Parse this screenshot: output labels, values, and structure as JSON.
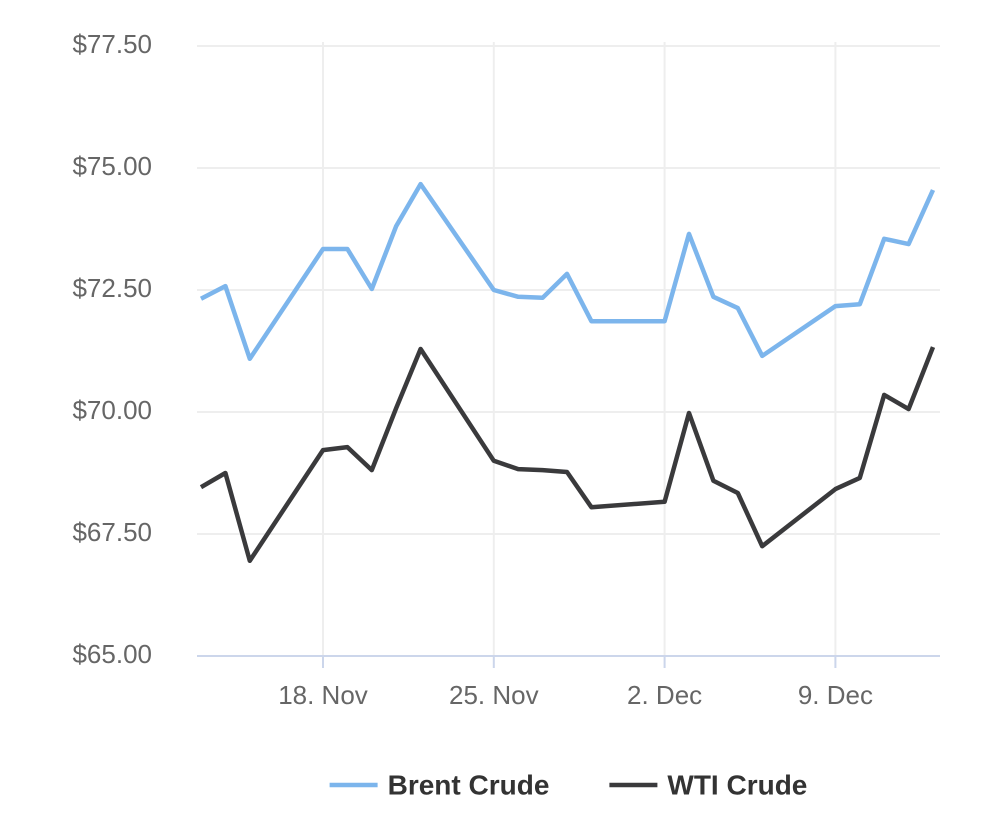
{
  "chart_data": {
    "type": "line",
    "x": [
      "13. Nov",
      "14. Nov",
      "15. Nov",
      "18. Nov",
      "19. Nov",
      "20. Nov",
      "21. Nov",
      "22. Nov",
      "25. Nov",
      "26. Nov",
      "27. Nov",
      "28. Nov",
      "29. Nov",
      "2. Dec",
      "3. Dec",
      "4. Dec",
      "5. Dec",
      "6. Dec",
      "9. Dec",
      "10. Dec",
      "11. Dec",
      "12. Dec",
      "13. Dec"
    ],
    "series": [
      {
        "name": "Brent Crude",
        "color": "#7cb5ec",
        "values": [
          72.32,
          72.58,
          71.09,
          73.34,
          73.34,
          72.52,
          73.81,
          74.67,
          72.5,
          72.36,
          72.34,
          72.83,
          71.86,
          71.86,
          73.65,
          72.36,
          72.13,
          71.15,
          72.17,
          72.21,
          73.55,
          73.44,
          74.55
        ]
      },
      {
        "name": "WTI Crude",
        "color": "#3a3a3c",
        "values": [
          68.46,
          68.75,
          66.95,
          69.22,
          69.28,
          68.81,
          70.08,
          71.29,
          69.0,
          68.83,
          68.81,
          68.77,
          68.05,
          68.16,
          69.98,
          68.59,
          68.34,
          67.25,
          68.42,
          68.65,
          70.35,
          70.06,
          71.33
        ]
      }
    ],
    "xlim": [
      "13. Nov",
      "13. Dec"
    ],
    "xticks": [
      "18. Nov",
      "25. Nov",
      "2. Dec",
      "9. Dec"
    ],
    "ylim": [
      65,
      77.5
    ],
    "yticks": [
      {
        "value": 65,
        "label": "$65.00"
      },
      {
        "value": 67.5,
        "label": "$67.50"
      },
      {
        "value": 70,
        "label": "$70.00"
      },
      {
        "value": 72.5,
        "label": "$72.50"
      },
      {
        "value": 75,
        "label": "$75.00"
      },
      {
        "value": 77.5,
        "label": "$77.50"
      }
    ],
    "grid": true,
    "legend": "bottom"
  }
}
